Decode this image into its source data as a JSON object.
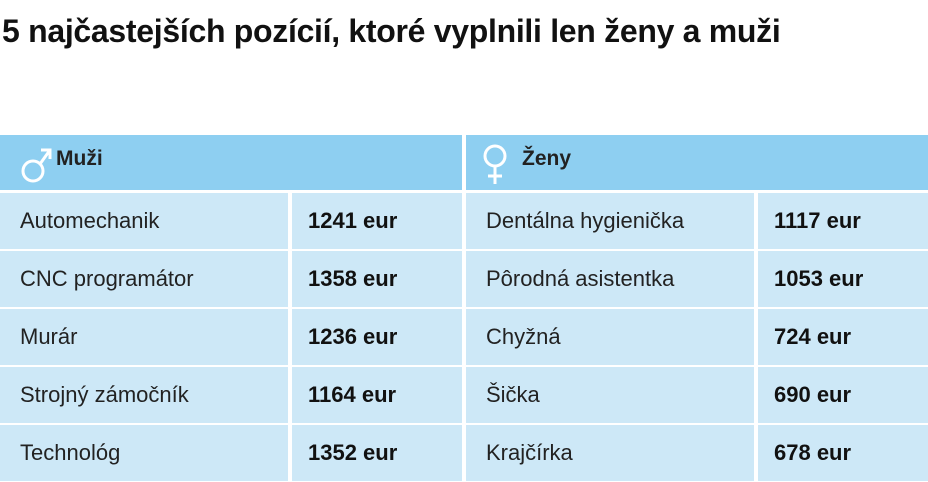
{
  "title": "5 najčastejších pozícií, ktoré vyplnili len ženy a muži",
  "table": {
    "sections": [
      {
        "header": "Muži",
        "rows": [
          [
            "Automechanik",
            "1241 eur"
          ],
          [
            "CNC programátor",
            "1358 eur"
          ],
          [
            "Murár",
            "1236 eur"
          ],
          [
            "Strojný zámočník",
            "1164 eur"
          ],
          [
            "Technológ",
            "1352 eur"
          ]
        ]
      },
      {
        "header": "Ženy",
        "rows": [
          [
            "Dentálna hygienička",
            "1117 eur"
          ],
          [
            "Pôrodná asistentka",
            "1053 eur"
          ],
          [
            "Chyžná",
            "724 eur"
          ],
          [
            "Šička",
            "690 eur"
          ],
          [
            "Krajčírka",
            "678 eur"
          ]
        ]
      }
    ]
  }
}
